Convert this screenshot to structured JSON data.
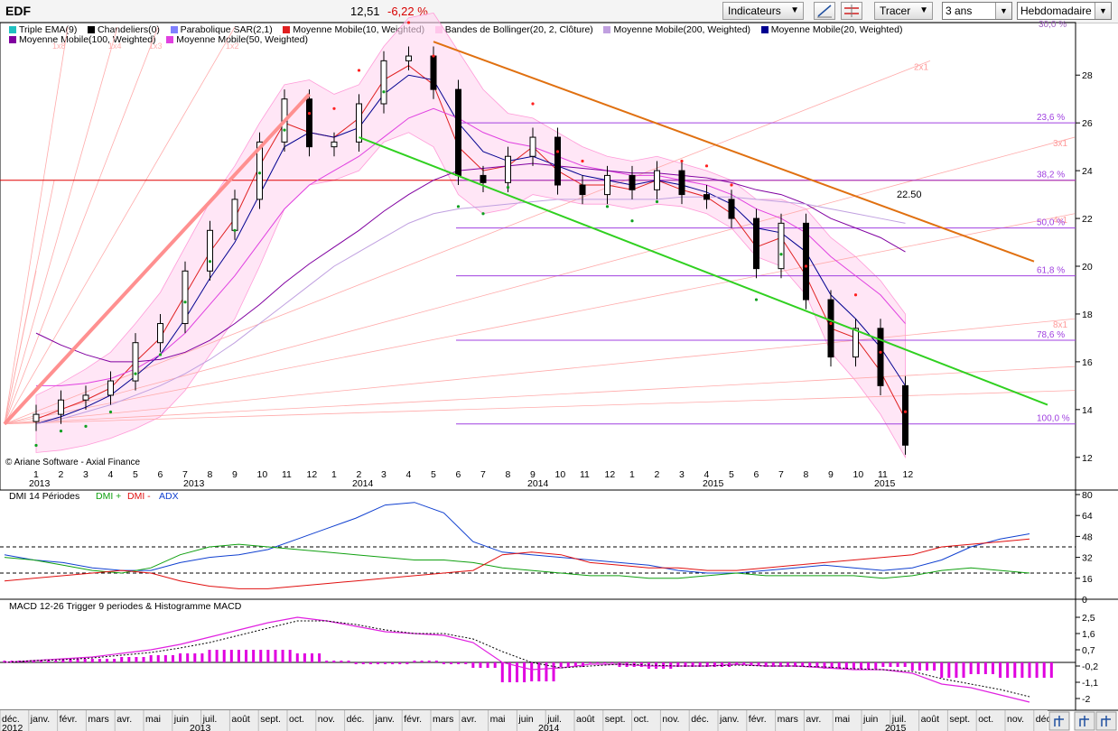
{
  "header": {
    "symbol": "EDF",
    "last_price": "12,51",
    "change": "-6,22 %",
    "indicators_label": "Indicateurs",
    "draw_label": "Tracer",
    "period_value": "3 ans",
    "frequency_value": "Hebdomadaire"
  },
  "legend": [
    {
      "label": "Triple EMA(9)",
      "color": "#20c0c0"
    },
    {
      "label": "Chandeliers(0)",
      "color": "#000000"
    },
    {
      "label": "Parabolique SAR(2,1)",
      "color": "#8080ff"
    },
    {
      "label": "Moyenne Mobile(10, Weighted)",
      "color": "#e02020"
    },
    {
      "label": "Bandes de Bollinger(20, 2, Clôture)",
      "color": "#ffb0e0"
    },
    {
      "label": "Moyenne Mobile(200, Weighted)",
      "color": "#c0a0e0"
    },
    {
      "label": "Moyenne Mobile(20, Weighted)",
      "color": "#000090"
    },
    {
      "label": "Moyenne Mobile(100, Weighted)",
      "color": "#8000a0"
    },
    {
      "label": "Moyenne Mobile(50, Weighted)",
      "color": "#e040e0"
    }
  ],
  "copyright": "© Ariane Software - Axial Finance",
  "price_axis": {
    "ticks": [
      "28",
      "26",
      "24",
      "22",
      "20",
      "18",
      "16",
      "14",
      "12"
    ],
    "top_partial": "30,0 %"
  },
  "fib_levels": [
    {
      "label": "23,6 %",
      "value": 26.0
    },
    {
      "label": "38,2 %",
      "value": 23.6
    },
    {
      "label": "50,0 %",
      "value": 21.6
    },
    {
      "label": "61,8 %",
      "value": 19.6
    },
    {
      "label": "78,6 %",
      "value": 16.9
    },
    {
      "label": "100,0 %",
      "value": 13.4
    }
  ],
  "fan_labels": [
    "2x1",
    "3x1",
    "4x1",
    "8x1"
  ],
  "fan_top_labels": [
    "1x8",
    "1x4",
    "1x3",
    "1x2"
  ],
  "annotation": "22.50",
  "red_level": 23.6,
  "month_numbers": [
    "1",
    "2",
    "3",
    "4",
    "5",
    "6",
    "7",
    "8",
    "9",
    "10",
    "11",
    "12",
    "1",
    "2",
    "3",
    "4",
    "5",
    "6",
    "7",
    "8",
    "9",
    "10",
    "11",
    "12",
    "1",
    "2",
    "3",
    "4",
    "5",
    "6",
    "7",
    "8",
    "9",
    "10",
    "11",
    "12"
  ],
  "year_labels": [
    "2013",
    "2013",
    "2014",
    "2014",
    "2015",
    "2015"
  ],
  "dmi": {
    "title": "DMI 14 Périodes",
    "plus_label": "DMI +",
    "minus_label": "DMI -",
    "adx_label": "ADX",
    "ticks": [
      "80",
      "64",
      "48",
      "32",
      "16",
      "0"
    ],
    "levels": [
      40,
      20
    ]
  },
  "macd": {
    "title": "MACD 12-26   Trigger 9 periodes & Histogramme MACD",
    "ticks": [
      "2,5",
      "1,6",
      "0,7",
      "-0,2",
      "-1,1",
      "-2"
    ]
  },
  "bottom_axis": {
    "months": [
      "déc.",
      "janv.",
      "févr.",
      "mars",
      "avr.",
      "mai",
      "juin",
      "juil.",
      "août",
      "sept.",
      "oct.",
      "nov.",
      "déc.",
      "janv.",
      "févr.",
      "mars",
      "avr.",
      "mai",
      "juin",
      "juil.",
      "août",
      "sept.",
      "oct.",
      "nov.",
      "déc.",
      "janv.",
      "févr.",
      "mars",
      "avr.",
      "mai",
      "juin",
      "juil.",
      "août",
      "sept.",
      "oct.",
      "nov.",
      "déc."
    ],
    "years": [
      "2012",
      "2013",
      "2014",
      "2015"
    ]
  },
  "chart_data": {
    "type": "line",
    "title": "EDF",
    "x": [
      "2013-01",
      "2013-02",
      "2013-03",
      "2013-04",
      "2013-05",
      "2013-06",
      "2013-07",
      "2013-08",
      "2013-09",
      "2013-10",
      "2013-11",
      "2013-12",
      "2014-01",
      "2014-02",
      "2014-03",
      "2014-04",
      "2014-05",
      "2014-06",
      "2014-07",
      "2014-08",
      "2014-09",
      "2014-10",
      "2014-11",
      "2014-12",
      "2015-01",
      "2015-02",
      "2015-03",
      "2015-04",
      "2015-05",
      "2015-06",
      "2015-07",
      "2015-08",
      "2015-09",
      "2015-10",
      "2015-11",
      "2015-12"
    ],
    "series": [
      {
        "name": "Chandeliers(0)",
        "values": [
          13.8,
          14.4,
          14.6,
          15.2,
          16.8,
          17.6,
          19.8,
          21.5,
          22.8,
          25.2,
          27.0,
          25.0,
          25.2,
          26.8,
          28.6,
          28.8,
          27.4,
          23.8,
          23.5,
          24.6,
          25.4,
          23.4,
          23.0,
          23.8,
          23.2,
          24.0,
          23.0,
          22.8,
          22.0,
          19.9,
          21.8,
          18.6,
          16.2,
          17.4,
          15.0,
          12.51
        ]
      },
      {
        "name": "Moyenne Mobile(10, Weighted)",
        "values": [
          13.6,
          14.0,
          14.4,
          14.9,
          16.0,
          17.0,
          18.8,
          20.6,
          22.0,
          24.2,
          26.0,
          25.6,
          25.4,
          26.2,
          27.8,
          28.4,
          27.6,
          25.0,
          24.0,
          24.2,
          25.0,
          24.0,
          23.4,
          23.4,
          23.2,
          23.6,
          23.2,
          22.9,
          22.2,
          20.8,
          21.2,
          19.6,
          17.4,
          17.0,
          15.6,
          13.6
        ]
      },
      {
        "name": "Moyenne Mobile(20, Weighted)",
        "values": [
          13.4,
          13.7,
          14.1,
          14.6,
          15.4,
          16.3,
          17.8,
          19.5,
          21.0,
          23.0,
          25.0,
          25.6,
          25.4,
          25.8,
          27.2,
          28.0,
          27.8,
          26.0,
          24.8,
          24.4,
          24.6,
          24.2,
          23.8,
          23.6,
          23.4,
          23.6,
          23.4,
          23.1,
          22.6,
          21.6,
          21.4,
          20.6,
          18.8,
          17.8,
          16.6,
          15.0
        ]
      },
      {
        "name": "Moyenne Mobile(50, Weighted)",
        "values": [
          15.0,
          15.0,
          15.1,
          15.3,
          15.7,
          16.3,
          17.2,
          18.4,
          19.6,
          21.0,
          22.4,
          23.4,
          24.0,
          24.6,
          25.4,
          26.2,
          26.6,
          26.2,
          25.6,
          25.2,
          25.0,
          24.6,
          24.2,
          24.0,
          23.8,
          23.8,
          23.6,
          23.4,
          23.0,
          22.4,
          22.0,
          21.4,
          20.4,
          19.6,
          18.8,
          17.6
        ]
      },
      {
        "name": "Moyenne Mobile(100, Weighted)",
        "values": [
          17.2,
          16.7,
          16.3,
          16.0,
          16.0,
          16.1,
          16.4,
          16.9,
          17.6,
          18.4,
          19.3,
          20.1,
          20.8,
          21.5,
          22.3,
          23.0,
          23.6,
          24.0,
          24.1,
          24.2,
          24.3,
          24.2,
          24.1,
          24.0,
          23.9,
          23.9,
          23.8,
          23.7,
          23.5,
          23.2,
          23.0,
          22.6,
          22.0,
          21.6,
          21.2,
          20.6
        ]
      },
      {
        "name": "Moyenne Mobile(200, Weighted)",
        "values": [
          13.4,
          13.6,
          13.9,
          14.2,
          14.6,
          15.0,
          15.5,
          16.1,
          16.8,
          17.6,
          18.4,
          19.2,
          20.0,
          20.6,
          21.2,
          21.8,
          22.2,
          22.4,
          22.5,
          22.6,
          22.7,
          22.8,
          22.8,
          22.8,
          22.8,
          22.8,
          22.9,
          22.9,
          22.9,
          22.8,
          22.7,
          22.6,
          22.4,
          22.2,
          22.0,
          21.8
        ]
      }
    ],
    "ylim": [
      11.5,
      30.2
    ],
    "xlabel": "",
    "ylabel": ""
  }
}
